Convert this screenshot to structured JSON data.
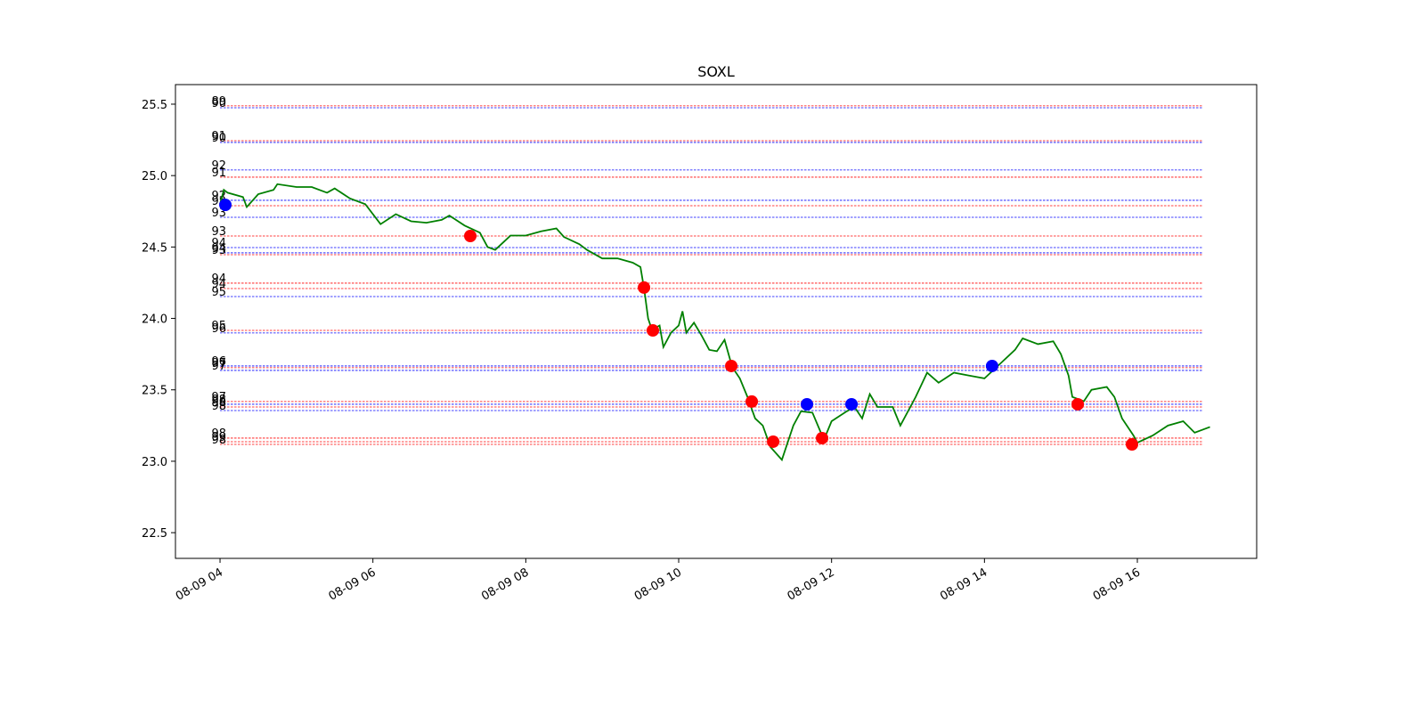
{
  "chart_data": {
    "type": "line",
    "title": "SOXL",
    "x": [
      4.0,
      4.05,
      4.1,
      4.3,
      4.35,
      4.5,
      4.7,
      4.75,
      5.0,
      5.2,
      5.4,
      5.5,
      5.7,
      5.9,
      6.0,
      6.1,
      6.3,
      6.5,
      6.7,
      6.9,
      7.0,
      7.2,
      7.4,
      7.5,
      7.6,
      7.8,
      8.0,
      8.2,
      8.4,
      8.5,
      8.7,
      8.8,
      9.0,
      9.2,
      9.4,
      9.5,
      9.55,
      9.6,
      9.65,
      9.75,
      9.8,
      9.9,
      10.0,
      10.05,
      10.1,
      10.2,
      10.3,
      10.4,
      10.5,
      10.6,
      10.7,
      10.8,
      10.9,
      11.0,
      11.1,
      11.2,
      11.35,
      11.5,
      11.6,
      11.75,
      11.9,
      12.0,
      12.2,
      12.3,
      12.4,
      12.5,
      12.6,
      12.8,
      12.9,
      13.0,
      13.1,
      13.25,
      13.4,
      13.6,
      13.8,
      14.0,
      14.2,
      14.4,
      14.5,
      14.7,
      14.9,
      15.0,
      15.1,
      15.15,
      15.3,
      15.4,
      15.6,
      15.7,
      15.8,
      15.95,
      16.0,
      16.2,
      16.4,
      16.6,
      16.75,
      16.95
    ],
    "series": [
      {
        "color": "#008000",
        "values": [
          24.8,
          24.9,
          24.88,
          24.85,
          24.78,
          24.87,
          24.9,
          24.94,
          24.92,
          24.92,
          24.88,
          24.91,
          24.84,
          24.8,
          24.73,
          24.66,
          24.73,
          24.68,
          24.67,
          24.69,
          24.72,
          24.65,
          24.6,
          24.5,
          24.48,
          24.58,
          24.58,
          24.61,
          24.63,
          24.57,
          24.52,
          24.48,
          24.42,
          24.42,
          24.39,
          24.36,
          24.2,
          24.0,
          23.92,
          23.95,
          23.8,
          23.9,
          23.95,
          24.05,
          23.9,
          23.97,
          23.88,
          23.78,
          23.77,
          23.85,
          23.66,
          23.58,
          23.45,
          23.3,
          23.25,
          23.1,
          23.01,
          23.25,
          23.35,
          23.34,
          23.15,
          23.28,
          23.35,
          23.38,
          23.3,
          23.47,
          23.38,
          23.38,
          23.25,
          23.35,
          23.45,
          23.62,
          23.55,
          23.62,
          23.6,
          23.58,
          23.68,
          23.78,
          23.86,
          23.82,
          23.84,
          23.75,
          23.6,
          23.45,
          23.42,
          23.5,
          23.52,
          23.45,
          23.3,
          23.18,
          23.13,
          23.18,
          23.25,
          23.28,
          23.2,
          23.24
        ]
      }
    ],
    "hlines": [
      {
        "value": 25.488,
        "label": 89,
        "color": "#ff0000"
      },
      {
        "value": 25.475,
        "label": 90,
        "color": "#0000ff"
      },
      {
        "value": 25.244,
        "label": 91,
        "color": "#ff0000"
      },
      {
        "value": 25.232,
        "label": 90,
        "color": "#0000ff"
      },
      {
        "value": 25.039,
        "label": 92,
        "color": "#0000ff"
      },
      {
        "value": 24.989,
        "label": 91,
        "color": "#ff0000"
      },
      {
        "value": 24.827,
        "label": 92,
        "color": "#0000ff"
      },
      {
        "value": 24.789,
        "label": 92,
        "color": "#ff0000"
      },
      {
        "value": 24.708,
        "label": 93,
        "color": "#0000ff"
      },
      {
        "value": 24.577,
        "label": 93,
        "color": "#ff0000"
      },
      {
        "value": 24.496,
        "label": 94,
        "color": "#0000ff"
      },
      {
        "value": 24.459,
        "label": 94,
        "color": "#0000ff"
      },
      {
        "value": 24.446,
        "label": 93,
        "color": "#ff0000"
      },
      {
        "value": 24.247,
        "label": 94,
        "color": "#ff0000"
      },
      {
        "value": 24.209,
        "label": 94,
        "color": "#ff0000"
      },
      {
        "value": 24.153,
        "label": 95,
        "color": "#0000ff"
      },
      {
        "value": 23.916,
        "label": 95,
        "color": "#ff0000"
      },
      {
        "value": 23.898,
        "label": 96,
        "color": "#0000ff"
      },
      {
        "value": 23.667,
        "label": 96,
        "color": "#0000ff"
      },
      {
        "value": 23.655,
        "label": 97,
        "color": "#ff0000"
      },
      {
        "value": 23.636,
        "label": 97,
        "color": "#0000ff"
      },
      {
        "value": 23.418,
        "label": 97,
        "color": "#ff0000"
      },
      {
        "value": 23.399,
        "label": 98,
        "color": "#0000ff"
      },
      {
        "value": 23.38,
        "label": 98,
        "color": "#ff0000"
      },
      {
        "value": 23.355,
        "label": 98,
        "color": "#0000ff"
      },
      {
        "value": 23.162,
        "label": 98,
        "color": "#ff0000"
      },
      {
        "value": 23.137,
        "label": 99,
        "color": "#ff0000"
      },
      {
        "value": 23.118,
        "label": 98,
        "color": "#ff0000"
      }
    ],
    "hline_xlim": [
      4.0,
      16.85
    ],
    "points": [
      {
        "x": 4.07,
        "y": 24.795,
        "color": "#0000ff"
      },
      {
        "x": 7.274,
        "y": 24.577,
        "color": "#ff0000"
      },
      {
        "x": 9.546,
        "y": 24.216,
        "color": "#ff0000"
      },
      {
        "x": 9.662,
        "y": 23.916,
        "color": "#ff0000"
      },
      {
        "x": 10.688,
        "y": 23.667,
        "color": "#ff0000"
      },
      {
        "x": 10.956,
        "y": 23.418,
        "color": "#ff0000"
      },
      {
        "x": 11.236,
        "y": 23.137,
        "color": "#ff0000"
      },
      {
        "x": 11.678,
        "y": 23.399,
        "color": "#0000ff"
      },
      {
        "x": 11.876,
        "y": 23.162,
        "color": "#ff0000"
      },
      {
        "x": 12.261,
        "y": 23.399,
        "color": "#0000ff"
      },
      {
        "x": 14.1,
        "y": 23.667,
        "color": "#0000ff"
      },
      {
        "x": 15.22,
        "y": 23.399,
        "color": "#ff0000"
      },
      {
        "x": 15.93,
        "y": 23.118,
        "color": "#ff0000"
      }
    ],
    "xlim": [
      3.417,
      17.561
    ],
    "ylim": [
      22.32,
      25.637
    ],
    "xticks": [
      {
        "value": 4,
        "label": "08-09 04"
      },
      {
        "value": 6,
        "label": "08-09 06"
      },
      {
        "value": 8,
        "label": "08-09 08"
      },
      {
        "value": 10,
        "label": "08-09 10"
      },
      {
        "value": 12,
        "label": "08-09 12"
      },
      {
        "value": 14,
        "label": "08-09 14"
      },
      {
        "value": 16,
        "label": "08-09 16"
      }
    ],
    "yticks": [
      22.5,
      {
        "value": 23,
        "label": "23.0"
      },
      23.5,
      {
        "value": 24,
        "label": "24.0"
      },
      24.5,
      {
        "value": 25,
        "label": "25.0"
      },
      25.5
    ]
  }
}
